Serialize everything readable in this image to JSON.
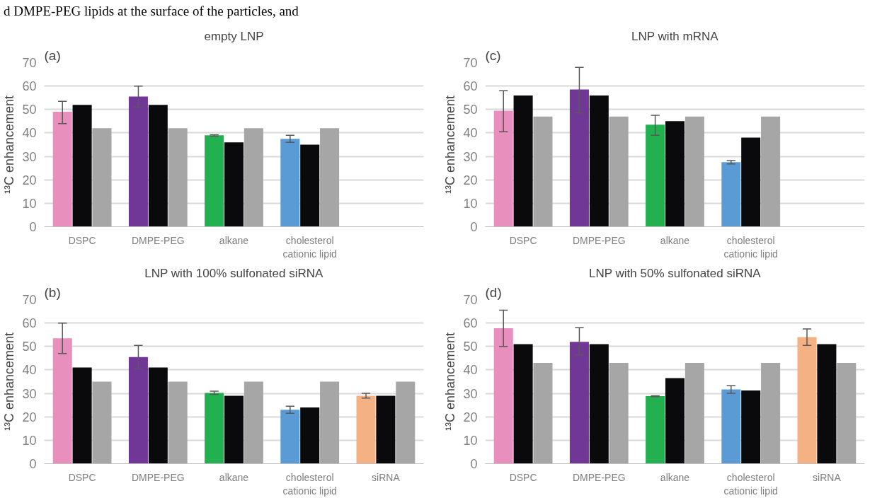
{
  "chart_data": [
    {
      "type": "bar",
      "title": "empty LNP",
      "ylabel": "¹³C enhancement",
      "annotations": [
        "(a)",
        "d DMPE-PEG lipids at the surface of the particles, and"
      ],
      "categories": [
        "DSPC",
        "DMPE-PEG",
        "alkane",
        "cholesterol\ncationic lipid",
        null
      ],
      "ylim": [
        0,
        70
      ],
      "yticks": [
        0,
        10,
        20,
        30,
        40,
        50,
        60,
        70
      ],
      "grid": "y",
      "series": [
        {
          "colors": [
            "#e98fbd",
            "#713796",
            "#22b050",
            "#5b9bd5",
            "#f4b183"
          ],
          "values": [
            49,
            55.5,
            39,
            37.5,
            null
          ],
          "errors": [
            [
              44,
              53.5
            ],
            [
              51,
              60
            ],
            [
              38.6,
              39.2
            ],
            [
              36,
              39
            ],
            null
          ]
        },
        {
          "color": "#0a0a0c",
          "values": [
            52,
            52,
            36,
            35,
            null
          ]
        },
        {
          "color": "#a6a6a6",
          "values": [
            42,
            42,
            42,
            42,
            null
          ]
        }
      ]
    },
    {
      "type": "bar",
      "title": "LNP with mRNA",
      "ylabel": "¹³C enhancement",
      "annotations": [
        "(c)"
      ],
      "categories": [
        "DSPC",
        "DMPE-PEG",
        "alkane",
        "cholesterol\ncationic lipid",
        null
      ],
      "ylim": [
        0,
        70
      ],
      "yticks": [
        0,
        10,
        20,
        30,
        40,
        50,
        60,
        70
      ],
      "grid": "y",
      "series": [
        {
          "colors": [
            "#e98fbd",
            "#713796",
            "#22b050",
            "#5b9bd5",
            "#f4b183"
          ],
          "values": [
            49.5,
            58.5,
            43.5,
            27.5,
            null
          ],
          "errors": [
            [
              40.5,
              58
            ],
            [
              48.5,
              68
            ],
            [
              39,
              47.5
            ],
            [
              26.8,
              28.2
            ],
            null
          ]
        },
        {
          "color": "#0a0a0c",
          "values": [
            56,
            56,
            45,
            38,
            null
          ]
        },
        {
          "color": "#a6a6a6",
          "values": [
            47,
            47,
            47,
            47,
            null
          ]
        }
      ]
    },
    {
      "type": "bar",
      "title": "LNP with 100% sulfonated siRNA",
      "ylabel": "¹³C enhancement",
      "annotations": [
        "(b)"
      ],
      "categories": [
        "DSPC",
        "DMPE-PEG",
        "alkane",
        "cholesterol\ncationic lipid",
        "siRNA"
      ],
      "ylim": [
        0,
        70
      ],
      "yticks": [
        0,
        10,
        20,
        30,
        40,
        50,
        60,
        70
      ],
      "grid": "y",
      "series": [
        {
          "colors": [
            "#e98fbd",
            "#713796",
            "#22b050",
            "#5b9bd5",
            "#f4b183"
          ],
          "values": [
            53.5,
            45.5,
            30.2,
            23,
            29
          ],
          "errors": [
            [
              47,
              60
            ],
            [
              40.5,
              50.5
            ],
            [
              29.6,
              30.9
            ],
            [
              21.5,
              24.5
            ],
            [
              28,
              30
            ]
          ]
        },
        {
          "color": "#0a0a0c",
          "values": [
            41,
            41,
            29,
            24,
            29
          ]
        },
        {
          "color": "#a6a6a6",
          "values": [
            35,
            35,
            35,
            35,
            35
          ]
        }
      ]
    },
    {
      "type": "bar",
      "title": "LNP with 50% sulfonated siRNA",
      "ylabel": "¹³C enhancement",
      "annotations": [
        "(d)"
      ],
      "categories": [
        "DSPC",
        "DMPE-PEG",
        "alkane",
        "cholesterol\ncationic lipid",
        "siRNA"
      ],
      "ylim": [
        0,
        70
      ],
      "yticks": [
        0,
        10,
        20,
        30,
        40,
        50,
        60,
        70
      ],
      "grid": "y",
      "series": [
        {
          "colors": [
            "#e98fbd",
            "#713796",
            "#22b050",
            "#5b9bd5",
            "#f4b183"
          ],
          "values": [
            57.8,
            52,
            28.8,
            31.7,
            54
          ],
          "errors": [
            [
              50,
              65.5
            ],
            [
              46.5,
              58
            ],
            [
              28.6,
              29
            ],
            [
              30,
              33.3
            ],
            [
              50.5,
              57.5
            ]
          ]
        },
        {
          "color": "#0a0a0c",
          "values": [
            51,
            51,
            36.5,
            31.2,
            51
          ]
        },
        {
          "color": "#a6a6a6",
          "values": [
            43,
            43,
            43,
            43,
            43
          ]
        }
      ]
    }
  ]
}
